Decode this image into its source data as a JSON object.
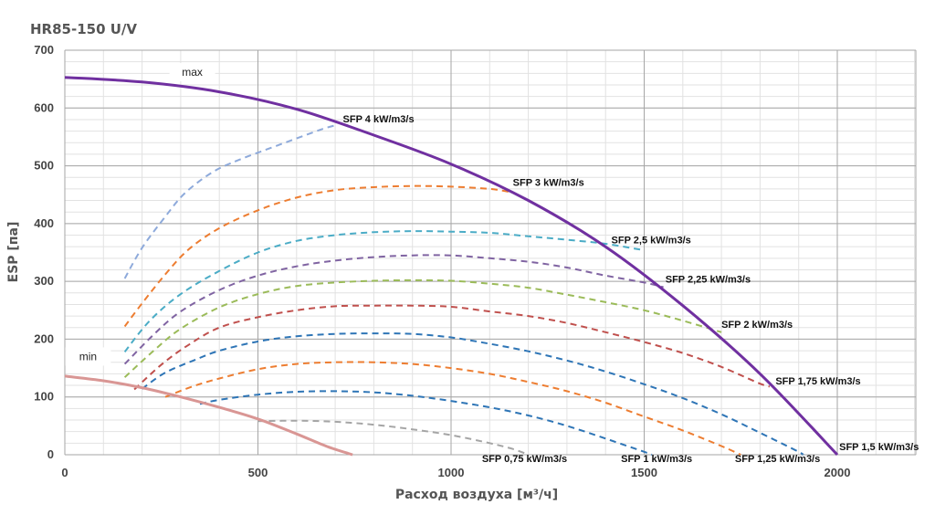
{
  "chart_data": {
    "type": "line",
    "title": "HR85-150 U/V",
    "xlabel": "Расход воздуха [м³/ч]",
    "ylabel": "ESP [па]",
    "xlim": [
      0,
      2000
    ],
    "ylim": [
      0,
      700
    ],
    "xticks": [
      0,
      500,
      1000,
      1500,
      2000
    ],
    "yticks": [
      0,
      100,
      200,
      300,
      400,
      500,
      600,
      700
    ],
    "grid": true,
    "minor_grid": {
      "x_step": 100,
      "y_step": 20
    },
    "fan_curves": [
      {
        "name": "max",
        "color": "#7030a0",
        "points": [
          [
            0,
            653
          ],
          [
            200,
            645
          ],
          [
            400,
            628
          ],
          [
            600,
            598
          ],
          [
            800,
            553
          ],
          [
            1000,
            503
          ],
          [
            1200,
            440
          ],
          [
            1400,
            360
          ],
          [
            1600,
            258
          ],
          [
            1800,
            140
          ],
          [
            2000,
            0
          ]
        ]
      },
      {
        "name": "min",
        "color": "#d99694",
        "points": [
          [
            0,
            136
          ],
          [
            100,
            128
          ],
          [
            200,
            116
          ],
          [
            300,
            100
          ],
          [
            400,
            82
          ],
          [
            500,
            62
          ],
          [
            600,
            36
          ],
          [
            680,
            14
          ],
          [
            745,
            0
          ]
        ]
      }
    ],
    "sfp_series": [
      {
        "name": "SFP 4 kW/m3/s",
        "color": "#8eaadb",
        "points": [
          [
            155,
            305
          ],
          [
            200,
            358
          ],
          [
            260,
            412
          ],
          [
            310,
            452
          ],
          [
            380,
            488
          ],
          [
            450,
            510
          ],
          [
            550,
            535
          ],
          [
            660,
            562
          ],
          [
            700,
            570
          ]
        ]
      },
      {
        "name": "SFP 3 kW/m3/s",
        "color": "#ed7d31",
        "points": [
          [
            155,
            222
          ],
          [
            200,
            262
          ],
          [
            260,
            312
          ],
          [
            320,
            355
          ],
          [
            400,
            392
          ],
          [
            500,
            423
          ],
          [
            600,
            445
          ],
          [
            700,
            458
          ],
          [
            800,
            463
          ],
          [
            900,
            465
          ],
          [
            1000,
            464
          ],
          [
            1100,
            460
          ],
          [
            1150,
            455
          ]
        ]
      },
      {
        "name": "SFP 2,5 kW/m3/s",
        "color": "#4bacc6",
        "points": [
          [
            155,
            178
          ],
          [
            220,
            232
          ],
          [
            300,
            278
          ],
          [
            400,
            318
          ],
          [
            500,
            350
          ],
          [
            600,
            370
          ],
          [
            700,
            380
          ],
          [
            800,
            385
          ],
          [
            900,
            387
          ],
          [
            1000,
            386
          ],
          [
            1100,
            384
          ],
          [
            1200,
            378
          ],
          [
            1300,
            372
          ],
          [
            1400,
            365
          ],
          [
            1490,
            355
          ]
        ]
      },
      {
        "name": "SFP 2,25 kW/m3/s",
        "color": "#8064a2",
        "points": [
          [
            155,
            157
          ],
          [
            230,
            208
          ],
          [
            300,
            248
          ],
          [
            400,
            285
          ],
          [
            500,
            310
          ],
          [
            600,
            326
          ],
          [
            700,
            336
          ],
          [
            800,
            342
          ],
          [
            900,
            345
          ],
          [
            1000,
            345
          ],
          [
            1100,
            340
          ],
          [
            1200,
            334
          ],
          [
            1300,
            324
          ],
          [
            1400,
            310
          ],
          [
            1500,
            298
          ],
          [
            1550,
            290
          ]
        ]
      },
      {
        "name": "SFP 2 kW/m3/s",
        "color": "#9bbb59",
        "points": [
          [
            155,
            134
          ],
          [
            230,
            180
          ],
          [
            300,
            218
          ],
          [
            400,
            255
          ],
          [
            500,
            278
          ],
          [
            600,
            292
          ],
          [
            700,
            298
          ],
          [
            800,
            301
          ],
          [
            900,
            302
          ],
          [
            1000,
            301
          ],
          [
            1100,
            296
          ],
          [
            1200,
            289
          ],
          [
            1300,
            277
          ],
          [
            1400,
            264
          ],
          [
            1500,
            250
          ],
          [
            1600,
            232
          ],
          [
            1700,
            212
          ]
        ]
      },
      {
        "name": "SFP 1,75 kW/m3/s",
        "color": "#c0504d",
        "points": [
          [
            180,
            113
          ],
          [
            250,
            156
          ],
          [
            320,
            190
          ],
          [
            400,
            220
          ],
          [
            500,
            238
          ],
          [
            600,
            250
          ],
          [
            700,
            257
          ],
          [
            800,
            258
          ],
          [
            900,
            258
          ],
          [
            1000,
            256
          ],
          [
            1100,
            248
          ],
          [
            1200,
            240
          ],
          [
            1300,
            228
          ],
          [
            1400,
            212
          ],
          [
            1500,
            195
          ],
          [
            1600,
            176
          ],
          [
            1700,
            152
          ],
          [
            1800,
            123
          ],
          [
            1825,
            118
          ]
        ]
      },
      {
        "name": "SFP 1,5 kW/m3/s",
        "color": "#2e75b6",
        "points": [
          [
            200,
            114
          ],
          [
            260,
            142
          ],
          [
            340,
            165
          ],
          [
            400,
            180
          ],
          [
            500,
            196
          ],
          [
            600,
            205
          ],
          [
            700,
            209
          ],
          [
            800,
            210
          ],
          [
            900,
            209
          ],
          [
            1000,
            203
          ],
          [
            1100,
            192
          ],
          [
            1200,
            179
          ],
          [
            1300,
            163
          ],
          [
            1400,
            144
          ],
          [
            1500,
            122
          ],
          [
            1600,
            98
          ],
          [
            1700,
            70
          ],
          [
            1800,
            38
          ],
          [
            1900,
            5
          ],
          [
            1910,
            0
          ]
        ]
      },
      {
        "name": "SFP 1,25 kW/m3/s",
        "color": "#ed7d31",
        "points": [
          [
            260,
            100
          ],
          [
            330,
            118
          ],
          [
            400,
            132
          ],
          [
            500,
            148
          ],
          [
            600,
            157
          ],
          [
            700,
            160
          ],
          [
            800,
            160
          ],
          [
            900,
            157
          ],
          [
            1000,
            150
          ],
          [
            1100,
            140
          ],
          [
            1200,
            126
          ],
          [
            1300,
            110
          ],
          [
            1400,
            90
          ],
          [
            1500,
            66
          ],
          [
            1600,
            42
          ],
          [
            1700,
            15
          ],
          [
            1750,
            0
          ]
        ]
      },
      {
        "name": "SFP 1 kW/m3/s",
        "color": "#2e75b6",
        "points": [
          [
            350,
            88
          ],
          [
            400,
            95
          ],
          [
            500,
            104
          ],
          [
            600,
            109
          ],
          [
            700,
            110
          ],
          [
            800,
            108
          ],
          [
            900,
            102
          ],
          [
            1000,
            93
          ],
          [
            1100,
            82
          ],
          [
            1200,
            68
          ],
          [
            1300,
            50
          ],
          [
            1400,
            28
          ],
          [
            1500,
            5
          ],
          [
            1520,
            0
          ]
        ]
      },
      {
        "name": "SFP 0,75 kW/m3/s",
        "color": "#a5a5a5",
        "points": [
          [
            500,
            58
          ],
          [
            600,
            59
          ],
          [
            700,
            57
          ],
          [
            800,
            52
          ],
          [
            900,
            44
          ],
          [
            1000,
            34
          ],
          [
            1100,
            20
          ],
          [
            1160,
            10
          ],
          [
            1200,
            0
          ]
        ]
      }
    ],
    "annotations": [
      {
        "text": "SFP 4 kW/m3/s",
        "x": 720,
        "y": 575
      },
      {
        "text": "SFP 3 kW/m3/s",
        "x": 1160,
        "y": 465
      },
      {
        "text": "SFP 2,5 kW/m3/s",
        "x": 1415,
        "y": 366
      },
      {
        "text": "SFP 2,25 kW/m3/s",
        "x": 1555,
        "y": 298
      },
      {
        "text": "SFP 2 kW/m3/s",
        "x": 1700,
        "y": 220
      },
      {
        "text": "SFP 1,75 kW/m3/s",
        "x": 1840,
        "y": 122
      },
      {
        "text": "SFP 1,5 kW/m3/s",
        "x": 2005,
        "y": 8
      },
      {
        "text": "SFP 1,25 kW/m3/s",
        "x": 1735,
        "y": -13
      },
      {
        "text": "SFP 1 kW/m3/s",
        "x": 1440,
        "y": -13
      },
      {
        "text": "SFP 0,75 kW/m3/s",
        "x": 1080,
        "y": -13
      }
    ],
    "tags": [
      {
        "text": "max",
        "x": 330,
        "y": 662
      },
      {
        "text": "min",
        "x": 60,
        "y": 170
      }
    ]
  }
}
